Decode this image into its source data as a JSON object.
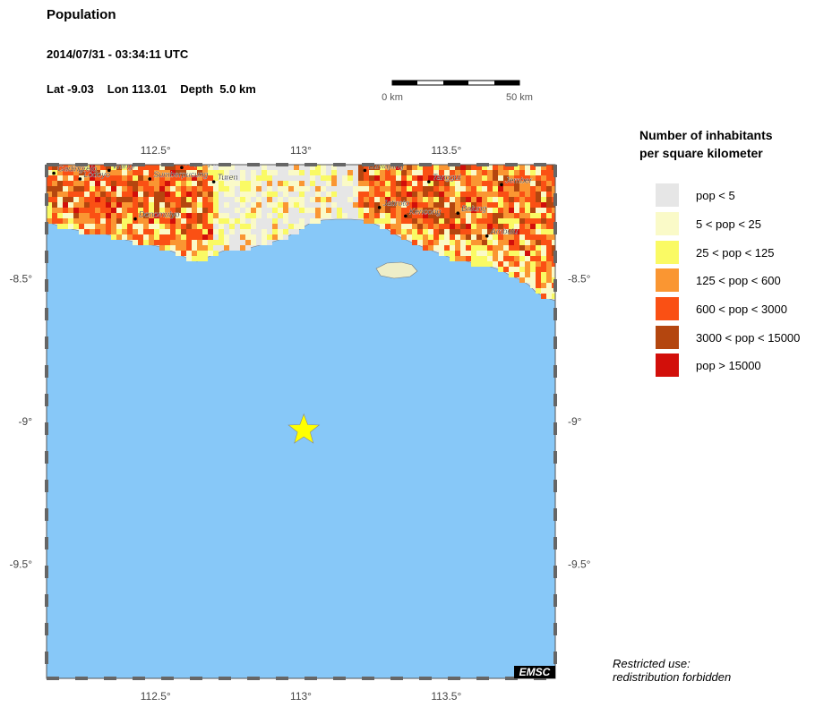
{
  "header": {
    "title": "Population",
    "datetime": "2014/07/31 - 03:34:11 UTC",
    "lat": "Lat -9.03",
    "lon": "Lon 113.01",
    "depth": "Depth  5.0 km"
  },
  "scale": {
    "left_label": "0 km",
    "right_label": "50 km"
  },
  "map": {
    "lon_ticks": [
      {
        "value": 112.5,
        "label": "112.5°"
      },
      {
        "value": 113.0,
        "label": "113°"
      },
      {
        "value": 113.5,
        "label": "113.5°"
      }
    ],
    "lat_ticks": [
      {
        "value": -8.5,
        "label": "-8.5°"
      },
      {
        "value": -9.0,
        "label": "-9°"
      },
      {
        "value": -9.5,
        "label": "-9.5°"
      }
    ],
    "epicenter": {
      "lat": -9.03,
      "lon": 113.01
    },
    "cities": [
      {
        "name": "Gadingrejo",
        "lat": -8.13,
        "lon": 112.15
      },
      {
        "name": "Lodoyo",
        "lat": -8.15,
        "lon": 112.24
      },
      {
        "name": "Wlingi",
        "lat": -8.12,
        "lon": 112.34
      },
      {
        "name": "Kepanjen",
        "lat": -8.11,
        "lon": 112.59
      },
      {
        "name": "Sumberpucung",
        "lat": -8.15,
        "lon": 112.48
      },
      {
        "name": "Turen",
        "lat": -8.16,
        "lon": 112.7
      },
      {
        "name": "Donomulyo",
        "lat": -8.29,
        "lon": 112.43
      },
      {
        "name": "Lumajang",
        "lat": -8.12,
        "lon": 113.22
      },
      {
        "name": "Tanggul",
        "lat": -8.16,
        "lon": 113.44
      },
      {
        "name": "Jember",
        "lat": -8.17,
        "lon": 113.69
      },
      {
        "name": "Jatiroto",
        "lat": -8.25,
        "lon": 113.27
      },
      {
        "name": "Kencong",
        "lat": -8.28,
        "lon": 113.36
      },
      {
        "name": "Balung",
        "lat": -8.27,
        "lon": 113.54
      },
      {
        "name": "Ambulu",
        "lat": -8.35,
        "lon": 113.64
      }
    ],
    "watermark": "EMSC"
  },
  "legend": {
    "title_line1": "Number of inhabitants",
    "title_line2": "per square kilometer",
    "items": [
      {
        "label": "pop < 5",
        "color": "#e6e6e6"
      },
      {
        "label": "5 < pop < 25",
        "color": "#fafac8"
      },
      {
        "label": "25 < pop < 125",
        "color": "#fafa64"
      },
      {
        "label": "125 < pop < 600",
        "color": "#fa9632"
      },
      {
        "label": "600 < pop < 3000",
        "color": "#fa5014"
      },
      {
        "label": "3000 < pop < 15000",
        "color": "#b4460f"
      },
      {
        "label": "pop > 15000",
        "color": "#d20f0a"
      }
    ]
  },
  "footer": {
    "restricted_line1": "Restricted use:",
    "restricted_line2": "redistribution forbidden"
  },
  "colors": {
    "sea": "#87c8f8",
    "star": "#ffff00"
  }
}
